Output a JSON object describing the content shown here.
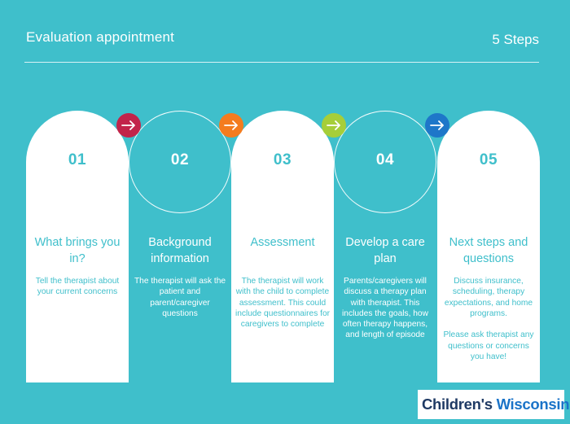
{
  "header": {
    "title": "Evaluation appointment",
    "steps_label": "5 Steps"
  },
  "colors": {
    "background": "#3fbfcb",
    "arrows": [
      "#c2244a",
      "#f47c1e",
      "#a6ce39",
      "#1e77c9"
    ]
  },
  "steps": [
    {
      "number": "01",
      "title": "What brings you in?",
      "description": "Tell the therapist about your current concerns"
    },
    {
      "number": "02",
      "title": "Background information",
      "description": "The therapist will ask the patient and parent/caregiver questions"
    },
    {
      "number": "03",
      "title": "Assessment",
      "description": "The therapist will work with the child to complete assessment. This could include questionnaires for caregivers to complete"
    },
    {
      "number": "04",
      "title": "Develop a care plan",
      "description": "Parents/caregivers will discuss a therapy plan with therapist. This includes the goals, how often therapy happens, and length of episode"
    },
    {
      "number": "05",
      "title": "Next steps and questions",
      "description": "Discuss insurance, scheduling, therapy expectations, and home programs.\n\nPlease ask therapist any questions or concerns you have!"
    }
  ],
  "arrows": [
    "arrow-right-icon",
    "arrow-right-icon",
    "arrow-right-icon",
    "arrow-right-icon"
  ],
  "logo": {
    "text_main": "Children's ",
    "text_accent": "Wisconsin",
    "icon": "children-figures-icon"
  }
}
